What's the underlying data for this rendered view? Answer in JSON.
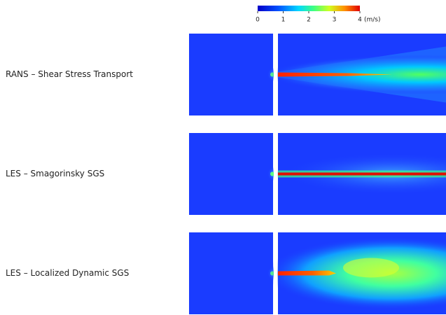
{
  "colorbar": {
    "ticks": [
      0,
      1,
      2,
      3,
      4
    ],
    "unit": "(m/s)"
  },
  "rows": [
    {
      "label": "RANS – Shear Stress Transport"
    },
    {
      "label": "LES – Smagorinsky SGS"
    },
    {
      "label": "LES – Localized Dynamic SGS"
    }
  ]
}
